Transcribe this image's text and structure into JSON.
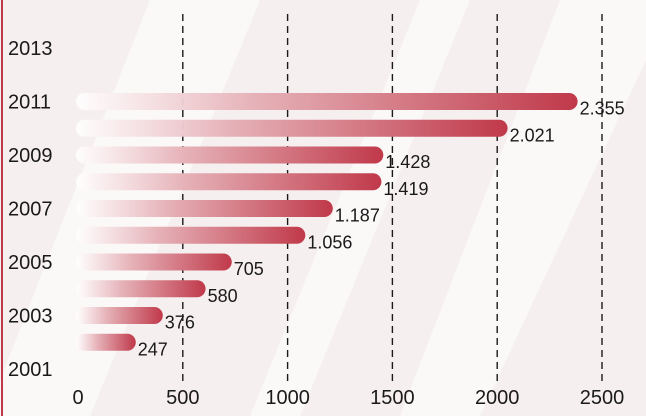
{
  "chart_data": {
    "type": "bar",
    "orientation": "horizontal",
    "categories": [
      "2002",
      "2003",
      "2004",
      "2005",
      "2006",
      "2007",
      "2008",
      "2009",
      "2010",
      "2011"
    ],
    "values": [
      247,
      376,
      580,
      705,
      1056,
      1187,
      1419,
      1428,
      2021,
      2355
    ],
    "value_labels": [
      "247",
      "376",
      "580",
      "705",
      "1.056",
      "1.187",
      "1.419",
      "1.428",
      "2.021",
      "2.355"
    ],
    "y_ticks": [
      "2001",
      "2003",
      "2005",
      "2007",
      "2009",
      "2011",
      "2013"
    ],
    "x_ticks": [
      "0",
      "500",
      "1000",
      "1500",
      "2000",
      "2500"
    ],
    "xlim": [
      0,
      2500
    ],
    "ylim": [
      2001,
      2013
    ],
    "grid": "vertical dashed",
    "title": "",
    "xlabel": "",
    "ylabel": "",
    "colors": {
      "bar_start": "#ffffff",
      "bar_end": "#c0394a",
      "frame": "#c0394a",
      "background": "#f6efef"
    }
  }
}
